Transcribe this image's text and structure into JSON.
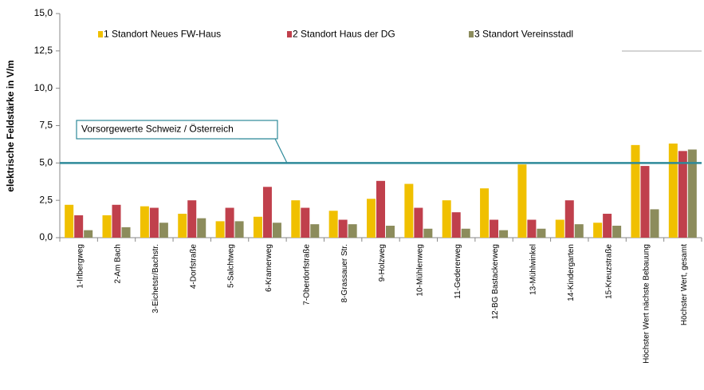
{
  "chart_data": {
    "type": "bar",
    "y_label": "elektrische  Feldstärke in V/m",
    "categories": [
      "1-Irlbergweg",
      "2-Am Bach",
      "3-Eichetstr/Bachstr.",
      "4-Dorfstraße",
      "5-Salchtweg",
      "6-Kramerweg",
      "7-Oberdorfstraße",
      "8-Grassauer Str.",
      "9-Holzweg",
      "10-Mühlenweg",
      "11-Gedererweg",
      "12-BG Bastackerweg",
      "13-Mühlwinkel",
      "14-Kindergarten",
      "15-Kreuzstraße",
      "Höchster Wert nächste Bebauung",
      "Höchster Wert, gesamt"
    ],
    "series": [
      {
        "name": "1 Standort Neues FW-Haus",
        "color": "#f0c000",
        "values": [
          2.2,
          1.5,
          2.1,
          1.6,
          1.1,
          1.4,
          2.5,
          1.8,
          2.6,
          3.6,
          2.5,
          3.3,
          4.9,
          1.2,
          1.0,
          6.2,
          6.3
        ]
      },
      {
        "name": "2 Standort Haus der DG",
        "color": "#c0404c",
        "values": [
          1.5,
          2.2,
          2.0,
          2.5,
          2.0,
          3.4,
          2.0,
          1.2,
          3.8,
          2.0,
          1.7,
          1.2,
          1.2,
          2.5,
          1.6,
          4.8,
          5.8
        ]
      },
      {
        "name": "3 Standort Vereinsstadl",
        "color": "#8c8c5c",
        "values": [
          0.5,
          0.7,
          1.0,
          1.3,
          1.1,
          1.0,
          0.9,
          0.9,
          0.8,
          0.6,
          0.6,
          0.5,
          0.6,
          0.9,
          0.8,
          1.9,
          5.9
        ]
      }
    ],
    "reference_line": {
      "value": 5,
      "label": "Vorsorgewerte Schweiz / Österreich",
      "color": "#2e8a9a"
    },
    "ylim": [
      0,
      15
    ],
    "yticks": [
      {
        "value": 0,
        "label": "0,0"
      },
      {
        "value": 2.5,
        "label": "2,5"
      },
      {
        "value": 5,
        "label": "5,0"
      },
      {
        "value": 7.5,
        "label": "7,5"
      },
      {
        "value": 10,
        "label": "10,0"
      },
      {
        "value": 12.5,
        "label": "12,5"
      },
      {
        "value": 15,
        "label": "15,0"
      }
    ],
    "grid": false
  }
}
